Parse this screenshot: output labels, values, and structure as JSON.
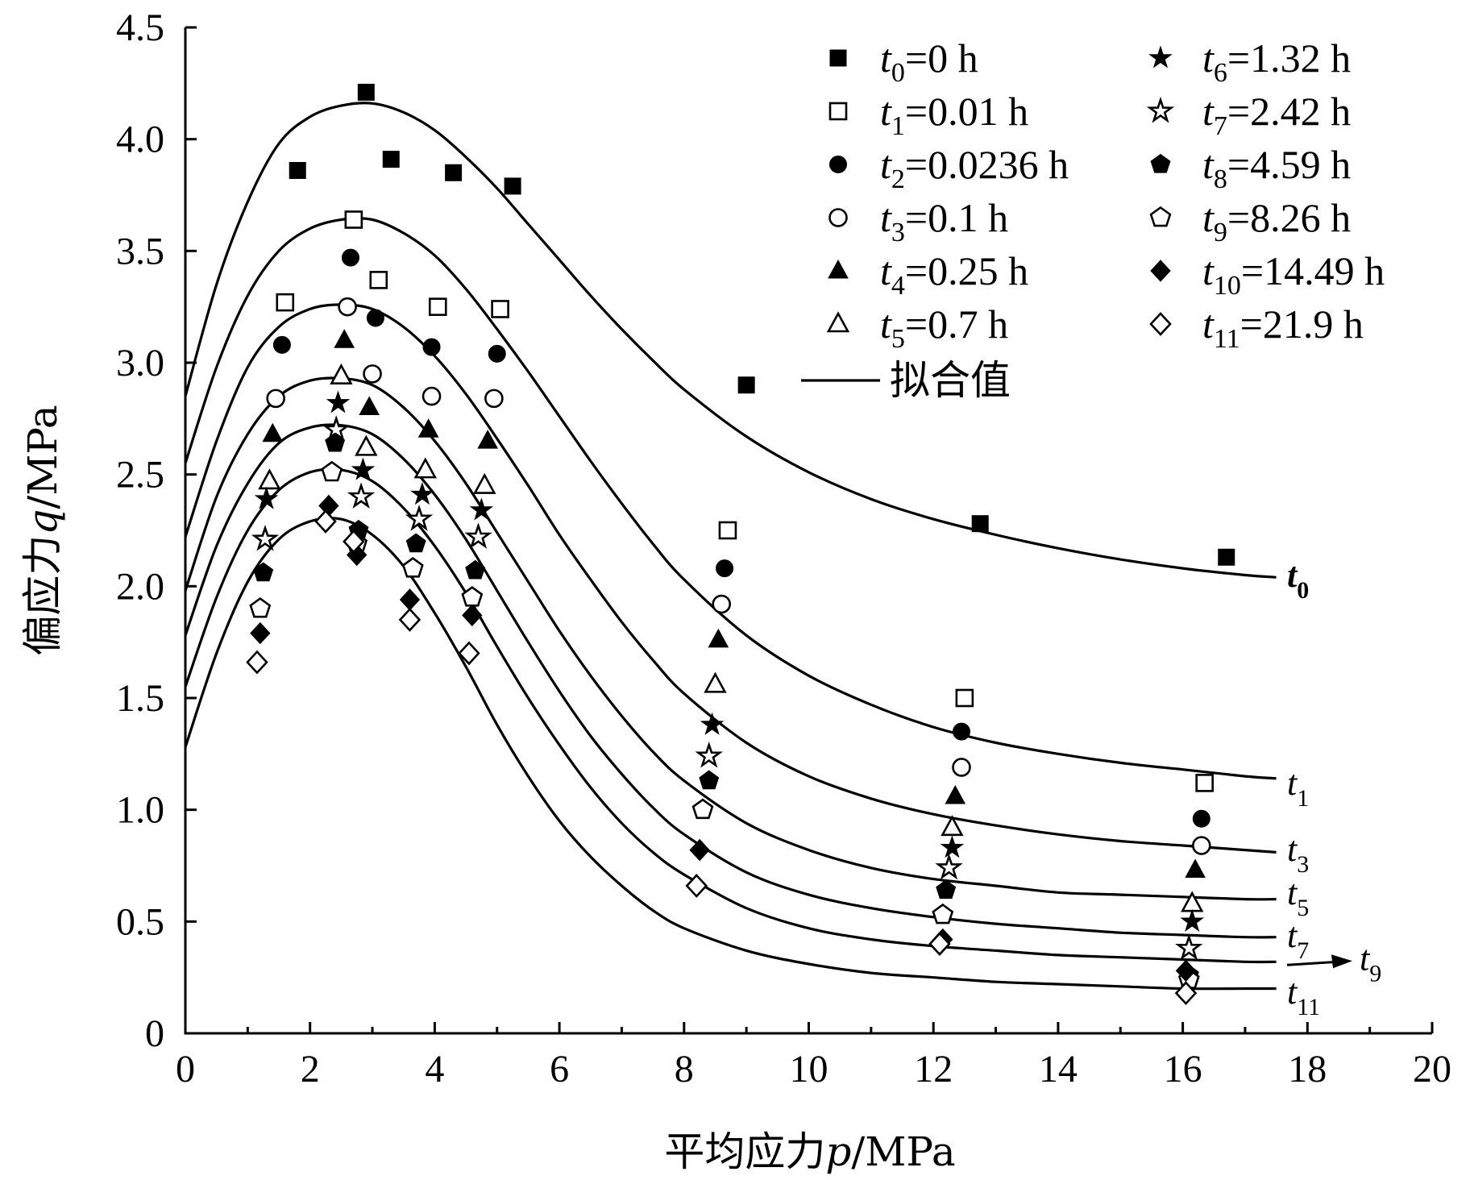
{
  "chart_data": {
    "type": "scatter",
    "xlabel_parts": {
      "prefix": "平均应力",
      "var": "p",
      "suffix": "/MPa"
    },
    "ylabel_parts": {
      "prefix": "偏应力",
      "var": "q",
      "suffix": "/MPa"
    },
    "xlim": [
      0,
      20
    ],
    "ylim": [
      0,
      4.5
    ],
    "x_ticks": [
      "0",
      "2",
      "4",
      "6",
      "8",
      "10",
      "12",
      "14",
      "16",
      "18",
      "20"
    ],
    "y_ticks": [
      "0",
      "0.5",
      "1.0",
      "1.5",
      "2.0",
      "2.5",
      "3.0",
      "3.5",
      "4.0",
      "4.5"
    ],
    "legend_position": "top-right",
    "fit_label": "拟合值",
    "series": [
      {
        "sub": "0",
        "value": "=0 h",
        "marker": "square-filled",
        "points": [
          [
            1.8,
            3.86
          ],
          [
            2.9,
            4.21
          ],
          [
            3.3,
            3.91
          ],
          [
            4.3,
            3.85
          ],
          [
            5.25,
            3.79
          ],
          [
            9.0,
            2.9
          ],
          [
            12.75,
            2.28
          ],
          [
            16.7,
            2.13
          ]
        ]
      },
      {
        "sub": "1",
        "value": "=0.01 h",
        "marker": "square-open",
        "points": [
          [
            1.6,
            3.27
          ],
          [
            2.7,
            3.64
          ],
          [
            3.1,
            3.37
          ],
          [
            4.05,
            3.25
          ],
          [
            5.05,
            3.24
          ],
          [
            8.7,
            2.25
          ],
          [
            12.5,
            1.5
          ],
          [
            16.35,
            1.12
          ]
        ]
      },
      {
        "sub": "2",
        "value": "=0.0236 h",
        "marker": "circle-filled",
        "points": [
          [
            1.55,
            3.08
          ],
          [
            2.65,
            3.47
          ],
          [
            3.05,
            3.2
          ],
          [
            3.95,
            3.07
          ],
          [
            5.0,
            3.04
          ],
          [
            8.65,
            2.08
          ],
          [
            12.45,
            1.35
          ],
          [
            16.3,
            0.96
          ]
        ]
      },
      {
        "sub": "3",
        "value": "=0.1 h",
        "marker": "circle-open",
        "points": [
          [
            1.45,
            2.84
          ],
          [
            2.6,
            3.25
          ],
          [
            3.0,
            2.95
          ],
          [
            3.95,
            2.85
          ],
          [
            4.95,
            2.84
          ],
          [
            8.6,
            1.92
          ],
          [
            12.45,
            1.19
          ],
          [
            16.3,
            0.84
          ]
        ]
      },
      {
        "sub": "4",
        "value": "=0.25 h",
        "marker": "triangle-filled",
        "points": [
          [
            1.4,
            2.68
          ],
          [
            2.55,
            3.1
          ],
          [
            2.95,
            2.8
          ],
          [
            3.9,
            2.7
          ],
          [
            4.85,
            2.65
          ],
          [
            8.55,
            1.76
          ],
          [
            12.35,
            1.06
          ],
          [
            16.2,
            0.73
          ]
        ]
      },
      {
        "sub": "5",
        "value": "=0.7 h",
        "marker": "triangle-open",
        "points": [
          [
            1.35,
            2.47
          ],
          [
            2.5,
            2.94
          ],
          [
            2.9,
            2.62
          ],
          [
            3.85,
            2.52
          ],
          [
            4.8,
            2.45
          ],
          [
            8.5,
            1.56
          ],
          [
            12.3,
            0.92
          ],
          [
            16.15,
            0.58
          ]
        ]
      },
      {
        "sub": "6",
        "value": "=1.32 h",
        "marker": "star-filled",
        "points": [
          [
            1.3,
            2.39
          ],
          [
            2.45,
            2.82
          ],
          [
            2.85,
            2.52
          ],
          [
            3.8,
            2.41
          ],
          [
            4.75,
            2.34
          ],
          [
            8.45,
            1.38
          ],
          [
            12.3,
            0.83
          ],
          [
            16.15,
            0.5
          ]
        ]
      },
      {
        "sub": "7",
        "value": "=2.42 h",
        "marker": "star-open",
        "points": [
          [
            1.28,
            2.21
          ],
          [
            2.42,
            2.7
          ],
          [
            2.82,
            2.4
          ],
          [
            3.75,
            2.3
          ],
          [
            4.7,
            2.22
          ],
          [
            8.4,
            1.24
          ],
          [
            12.25,
            0.74
          ],
          [
            16.1,
            0.38
          ]
        ]
      },
      {
        "sub": "8",
        "value": "=4.59 h",
        "marker": "pentagon-filled",
        "points": [
          [
            1.25,
            2.06
          ],
          [
            2.4,
            2.64
          ],
          [
            2.78,
            2.25
          ],
          [
            3.7,
            2.19
          ],
          [
            4.65,
            2.07
          ],
          [
            8.4,
            1.13
          ],
          [
            12.2,
            0.64
          ],
          [
            16.1,
            0.26
          ]
        ]
      },
      {
        "sub": "9",
        "value": "=8.26 h",
        "marker": "pentagon-open",
        "points": [
          [
            1.2,
            1.9
          ],
          [
            2.35,
            2.51
          ],
          [
            2.75,
            2.19
          ],
          [
            3.65,
            2.08
          ],
          [
            4.6,
            1.95
          ],
          [
            8.3,
            1.0
          ],
          [
            12.15,
            0.53
          ],
          [
            16.1,
            0.24
          ]
        ]
      },
      {
        "sub": "10",
        "value": "=14.49 h",
        "marker": "diamond-filled",
        "points": [
          [
            1.2,
            1.79
          ],
          [
            2.3,
            2.36
          ],
          [
            2.75,
            2.14
          ],
          [
            3.6,
            1.94
          ],
          [
            4.6,
            1.87
          ],
          [
            8.25,
            0.82
          ],
          [
            12.15,
            0.42
          ],
          [
            16.05,
            0.28
          ]
        ]
      },
      {
        "sub": "11",
        "value": "=21.9 h",
        "marker": "diamond-open",
        "points": [
          [
            1.15,
            1.66
          ],
          [
            2.25,
            2.29
          ],
          [
            2.7,
            2.2
          ],
          [
            3.6,
            1.85
          ],
          [
            4.55,
            1.7
          ],
          [
            8.2,
            0.66
          ],
          [
            12.1,
            0.4
          ],
          [
            16.05,
            0.18
          ]
        ]
      }
    ],
    "fitted_curves": [
      {
        "label_sub": "0",
        "bold": true,
        "points": [
          [
            0,
            2.85
          ],
          [
            0.5,
            3.35
          ],
          [
            1,
            3.72
          ],
          [
            1.5,
            3.98
          ],
          [
            2,
            4.1
          ],
          [
            2.5,
            4.15
          ],
          [
            3,
            4.16
          ],
          [
            3.5,
            4.12
          ],
          [
            4,
            4.04
          ],
          [
            4.5,
            3.92
          ],
          [
            5,
            3.78
          ],
          [
            5.5,
            3.62
          ],
          [
            6,
            3.46
          ],
          [
            6.5,
            3.3
          ],
          [
            7,
            3.15
          ],
          [
            7.5,
            3.01
          ],
          [
            8,
            2.88
          ],
          [
            9,
            2.67
          ],
          [
            10,
            2.51
          ],
          [
            11,
            2.39
          ],
          [
            12,
            2.3
          ],
          [
            13,
            2.23
          ],
          [
            14,
            2.17
          ],
          [
            15,
            2.12
          ],
          [
            16,
            2.08
          ],
          [
            17,
            2.05
          ],
          [
            17.5,
            2.04
          ]
        ]
      },
      {
        "label_sub": "1",
        "bold": false,
        "points": [
          [
            0,
            2.55
          ],
          [
            0.5,
            2.98
          ],
          [
            1,
            3.3
          ],
          [
            1.5,
            3.5
          ],
          [
            2,
            3.6
          ],
          [
            2.5,
            3.64
          ],
          [
            3,
            3.64
          ],
          [
            3.5,
            3.58
          ],
          [
            4,
            3.48
          ],
          [
            4.5,
            3.33
          ],
          [
            5,
            3.15
          ],
          [
            5.5,
            2.96
          ],
          [
            6,
            2.76
          ],
          [
            6.5,
            2.56
          ],
          [
            7,
            2.37
          ],
          [
            7.5,
            2.19
          ],
          [
            8,
            2.03
          ],
          [
            9,
            1.78
          ],
          [
            10,
            1.6
          ],
          [
            11,
            1.47
          ],
          [
            12,
            1.37
          ],
          [
            13,
            1.3
          ],
          [
            14,
            1.25
          ],
          [
            15,
            1.21
          ],
          [
            16,
            1.18
          ],
          [
            17,
            1.15
          ],
          [
            17.5,
            1.14
          ]
        ]
      },
      {
        "label_sub": "3",
        "bold": false,
        "points": [
          [
            0,
            2.22
          ],
          [
            0.5,
            2.65
          ],
          [
            1,
            2.98
          ],
          [
            1.5,
            3.16
          ],
          [
            2,
            3.24
          ],
          [
            2.5,
            3.26
          ],
          [
            3,
            3.24
          ],
          [
            3.5,
            3.16
          ],
          [
            4,
            3.03
          ],
          [
            4.5,
            2.86
          ],
          [
            5,
            2.66
          ],
          [
            5.5,
            2.45
          ],
          [
            6,
            2.23
          ],
          [
            6.5,
            2.03
          ],
          [
            7,
            1.84
          ],
          [
            7.5,
            1.67
          ],
          [
            8,
            1.52
          ],
          [
            9,
            1.3
          ],
          [
            10,
            1.15
          ],
          [
            11,
            1.05
          ],
          [
            12,
            0.98
          ],
          [
            13,
            0.93
          ],
          [
            14,
            0.89
          ],
          [
            15,
            0.86
          ],
          [
            16,
            0.84
          ],
          [
            17,
            0.82
          ],
          [
            17.5,
            0.81
          ]
        ]
      },
      {
        "label_sub": "5",
        "bold": false,
        "points": [
          [
            0,
            1.98
          ],
          [
            0.5,
            2.4
          ],
          [
            1,
            2.68
          ],
          [
            1.5,
            2.85
          ],
          [
            2,
            2.92
          ],
          [
            2.5,
            2.93
          ],
          [
            3,
            2.9
          ],
          [
            3.5,
            2.8
          ],
          [
            4,
            2.65
          ],
          [
            4.5,
            2.46
          ],
          [
            5,
            2.24
          ],
          [
            5.5,
            2.02
          ],
          [
            6,
            1.8
          ],
          [
            6.5,
            1.6
          ],
          [
            7,
            1.42
          ],
          [
            7.5,
            1.26
          ],
          [
            8,
            1.13
          ],
          [
            9,
            0.94
          ],
          [
            10,
            0.82
          ],
          [
            11,
            0.74
          ],
          [
            12,
            0.69
          ],
          [
            13,
            0.66
          ],
          [
            14,
            0.63
          ],
          [
            15,
            0.62
          ],
          [
            16,
            0.61
          ],
          [
            17,
            0.6
          ],
          [
            17.5,
            0.6
          ]
        ]
      },
      {
        "label_sub": "7",
        "bold": false,
        "points": [
          [
            0,
            1.78
          ],
          [
            0.5,
            2.18
          ],
          [
            1,
            2.46
          ],
          [
            1.5,
            2.64
          ],
          [
            2,
            2.71
          ],
          [
            2.5,
            2.72
          ],
          [
            3,
            2.68
          ],
          [
            3.5,
            2.57
          ],
          [
            4,
            2.41
          ],
          [
            4.5,
            2.21
          ],
          [
            5,
            1.98
          ],
          [
            5.5,
            1.75
          ],
          [
            6,
            1.53
          ],
          [
            6.5,
            1.33
          ],
          [
            7,
            1.16
          ],
          [
            7.5,
            1.01
          ],
          [
            8,
            0.89
          ],
          [
            9,
            0.72
          ],
          [
            10,
            0.62
          ],
          [
            11,
            0.56
          ],
          [
            12,
            0.52
          ],
          [
            13,
            0.49
          ],
          [
            14,
            0.47
          ],
          [
            15,
            0.45
          ],
          [
            16,
            0.44
          ],
          [
            17,
            0.43
          ],
          [
            17.5,
            0.43
          ]
        ]
      },
      {
        "label_sub": "9",
        "bold": false,
        "points": [
          [
            0,
            1.55
          ],
          [
            0.5,
            1.95
          ],
          [
            1,
            2.25
          ],
          [
            1.5,
            2.43
          ],
          [
            2,
            2.51
          ],
          [
            2.5,
            2.52
          ],
          [
            3,
            2.47
          ],
          [
            3.5,
            2.35
          ],
          [
            4,
            2.18
          ],
          [
            4.5,
            1.97
          ],
          [
            5,
            1.73
          ],
          [
            5.5,
            1.5
          ],
          [
            6,
            1.29
          ],
          [
            6.5,
            1.1
          ],
          [
            7,
            0.94
          ],
          [
            7.5,
            0.81
          ],
          [
            8,
            0.71
          ],
          [
            9,
            0.56
          ],
          [
            10,
            0.47
          ],
          [
            11,
            0.42
          ],
          [
            12,
            0.39
          ],
          [
            13,
            0.37
          ],
          [
            14,
            0.35
          ],
          [
            15,
            0.34
          ],
          [
            16,
            0.33
          ],
          [
            17,
            0.32
          ],
          [
            17.5,
            0.32
          ]
        ]
      },
      {
        "label_sub": "11",
        "bold": false,
        "points": [
          [
            0,
            1.28
          ],
          [
            0.5,
            1.7
          ],
          [
            1,
            2.02
          ],
          [
            1.5,
            2.21
          ],
          [
            2,
            2.29
          ],
          [
            2.5,
            2.3
          ],
          [
            3,
            2.23
          ],
          [
            3.5,
            2.09
          ],
          [
            4,
            1.88
          ],
          [
            4.5,
            1.64
          ],
          [
            5,
            1.38
          ],
          [
            5.5,
            1.15
          ],
          [
            6,
            0.95
          ],
          [
            6.5,
            0.79
          ],
          [
            7,
            0.66
          ],
          [
            7.5,
            0.55
          ],
          [
            8,
            0.47
          ],
          [
            9,
            0.37
          ],
          [
            10,
            0.31
          ],
          [
            11,
            0.27
          ],
          [
            12,
            0.25
          ],
          [
            13,
            0.23
          ],
          [
            14,
            0.22
          ],
          [
            15,
            0.21
          ],
          [
            16,
            0.2
          ],
          [
            17,
            0.2
          ],
          [
            17.5,
            0.2
          ]
        ]
      }
    ]
  }
}
